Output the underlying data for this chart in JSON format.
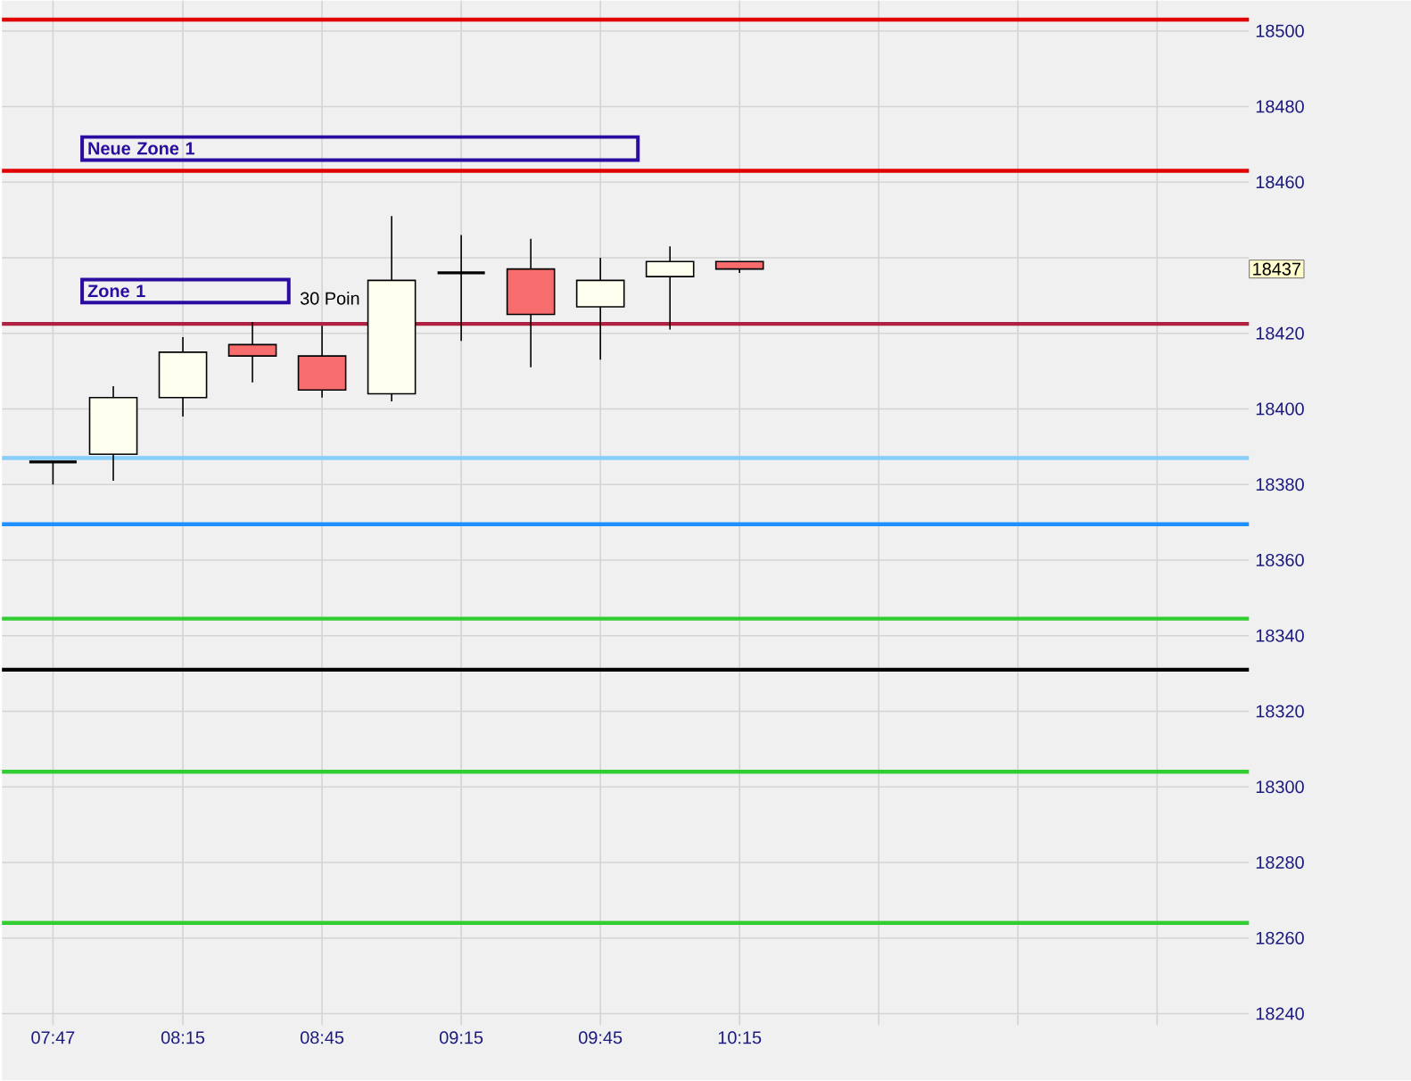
{
  "chart_data": {
    "type": "candlestick",
    "x": [
      7.7833,
      8.0,
      8.25,
      8.5,
      8.75,
      9.0,
      9.25,
      9.5,
      9.75,
      10.0,
      10.25
    ],
    "ohlc": [
      [
        18386,
        18386,
        18380,
        18386
      ],
      [
        18388,
        18406,
        18381,
        18403
      ],
      [
        18403,
        18419,
        18398,
        18415
      ],
      [
        18417,
        18423,
        18407,
        18414
      ],
      [
        18414,
        18422,
        18403,
        18405
      ],
      [
        18404,
        18451,
        18402,
        18434
      ],
      [
        18436,
        18446,
        18418,
        18436
      ],
      [
        18437,
        18445,
        18411,
        18425
      ],
      [
        18427,
        18440,
        18413,
        18434
      ],
      [
        18435,
        18443,
        18421,
        18439
      ],
      [
        18439,
        18439,
        18436,
        18437
      ]
    ],
    "xlim": [
      7.6,
      12.08
    ],
    "xticks": [
      {
        "value": 7.7833,
        "label": "07:47"
      },
      {
        "value": 8.25,
        "label": "08:15"
      },
      {
        "value": 8.75,
        "label": "08:45"
      },
      {
        "value": 9.25,
        "label": "09:15"
      },
      {
        "value": 9.75,
        "label": "09:45"
      },
      {
        "value": 10.25,
        "label": "10:15"
      },
      {
        "value": 10.75,
        "label": null
      },
      {
        "value": 11.25,
        "label": null
      },
      {
        "value": 11.75,
        "label": null
      }
    ],
    "ylim": [
      18237,
      18508
    ],
    "yticks": [
      18240,
      18260,
      18280,
      18300,
      18320,
      18340,
      18360,
      18380,
      18400,
      18420,
      {
        "value": 18440,
        "label": null
      },
      18460,
      18480,
      18500
    ],
    "grid": true,
    "ref_lines": [
      {
        "axis": "y",
        "value": 18503,
        "color": "#e00000"
      },
      {
        "axis": "y",
        "value": 18463,
        "color": "#e00000"
      },
      {
        "axis": "y",
        "value": 18422.5,
        "color": "#b02040"
      },
      {
        "axis": "y",
        "value": 18387,
        "color": "#87cefa"
      },
      {
        "axis": "y",
        "value": 18369.5,
        "color": "#1e90ff"
      },
      {
        "axis": "y",
        "value": 18344.5,
        "color": "#32cd32"
      },
      {
        "axis": "y",
        "value": 18331,
        "color": "#000000"
      },
      {
        "axis": "y",
        "value": 18304,
        "color": "#32cd32"
      },
      {
        "axis": "y",
        "value": 18264,
        "color": "#32cd32"
      }
    ],
    "annotations": [
      "Neue Zone 1",
      "Zone 1",
      "30 Poin",
      {
        "text": "18437",
        "y": 18437
      }
    ]
  }
}
